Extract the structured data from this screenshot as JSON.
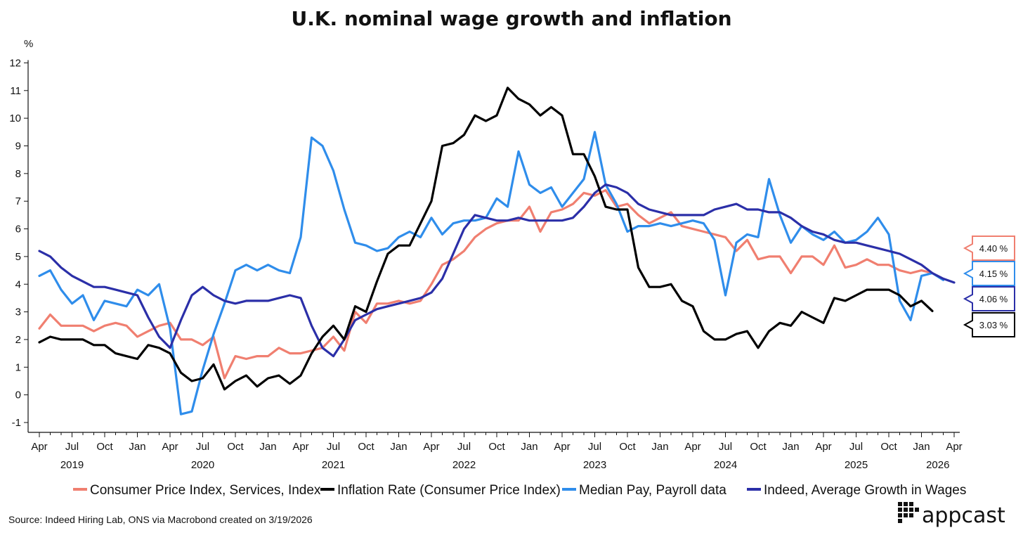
{
  "colors": {
    "cpi_services": "#F07F70",
    "inflation": "#000000",
    "median_pay": "#2F8DEB",
    "indeed_wages": "#2B2FA8"
  },
  "source_text": "Source: Indeed Hiring Lab, ONS via Macrobond created on 3/19/2026",
  "brand": {
    "name": "appcast",
    "icon": "dot-grid-icon"
  },
  "chart_data": {
    "type": "line",
    "title": "U.K. nominal wage growth and inflation",
    "ylabel": "%",
    "xlabel": "",
    "ylim": [
      -1,
      12
    ],
    "yticks": [
      -1,
      0,
      1,
      2,
      3,
      4,
      5,
      6,
      7,
      8,
      9,
      10,
      11,
      12
    ],
    "x_start_month": "2019-04",
    "x_end_month": "2026-04",
    "x_tick_labels": [
      "Apr",
      "Jul",
      "Oct",
      "Jan",
      "Apr",
      "Jul",
      "Oct",
      "Jan",
      "Apr",
      "Jul",
      "Oct",
      "Jan",
      "Apr",
      "Jul",
      "Oct",
      "Jan",
      "Apr",
      "Jul",
      "Oct",
      "Jan",
      "Apr",
      "Jul",
      "Oct",
      "Jan",
      "Apr",
      "Jul",
      "Oct",
      "Jan",
      "Apr"
    ],
    "year_labels": [
      "2019",
      "2020",
      "2021",
      "2022",
      "2023",
      "2024",
      "2025",
      "2026"
    ],
    "grid": false,
    "legend_position": "bottom",
    "series": [
      {
        "name": "Consumer Price Index, Services, Index",
        "key": "cpi_services",
        "start_month": "2019-04",
        "end_label": "4.40 %",
        "values": [
          2.4,
          2.9,
          2.5,
          2.5,
          2.5,
          2.3,
          2.5,
          2.6,
          2.5,
          2.1,
          2.3,
          2.5,
          2.6,
          2.0,
          2.0,
          1.8,
          2.1,
          0.6,
          1.4,
          1.3,
          1.4,
          1.4,
          1.7,
          1.5,
          1.5,
          1.6,
          1.7,
          2.1,
          1.6,
          3.0,
          2.6,
          3.3,
          3.3,
          3.4,
          3.3,
          3.4,
          4.0,
          4.7,
          4.9,
          5.2,
          5.7,
          6.0,
          6.2,
          6.3,
          6.3,
          6.8,
          5.9,
          6.6,
          6.7,
          6.9,
          7.3,
          7.2,
          7.4,
          6.8,
          6.9,
          6.5,
          6.2,
          6.4,
          6.6,
          6.1,
          6.0,
          5.9,
          5.8,
          5.7,
          5.2,
          5.6,
          4.9,
          5.0,
          5.0,
          4.4,
          5.0,
          5.0,
          4.7,
          5.4,
          4.6,
          4.7,
          4.9,
          4.7,
          4.7,
          4.5,
          4.4,
          4.5,
          4.4
        ]
      },
      {
        "name": "Inflation Rate (Consumer Price Index)",
        "key": "inflation",
        "start_month": "2019-04",
        "end_label": "3.03 %",
        "values": [
          1.9,
          2.1,
          2.0,
          2.0,
          2.0,
          1.8,
          1.8,
          1.5,
          1.4,
          1.3,
          1.8,
          1.7,
          1.5,
          0.8,
          0.5,
          0.6,
          1.1,
          0.2,
          0.5,
          0.7,
          0.3,
          0.6,
          0.7,
          0.4,
          0.7,
          1.5,
          2.1,
          2.5,
          2.0,
          3.2,
          3.0,
          4.1,
          5.1,
          5.4,
          5.4,
          6.2,
          7.0,
          9.0,
          9.1,
          9.4,
          10.1,
          9.9,
          10.1,
          11.1,
          10.7,
          10.5,
          10.1,
          10.4,
          10.1,
          8.7,
          8.7,
          7.9,
          6.8,
          6.7,
          6.7,
          4.6,
          3.9,
          3.9,
          4.0,
          3.4,
          3.2,
          2.3,
          2.0,
          2.0,
          2.2,
          2.3,
          1.7,
          2.3,
          2.6,
          2.5,
          3.0,
          2.8,
          2.6,
          3.5,
          3.4,
          3.6,
          3.8,
          3.8,
          3.8,
          3.6,
          3.2,
          3.4,
          3.03
        ]
      },
      {
        "name": "Median Pay, Payroll data",
        "key": "median_pay",
        "start_month": "2019-04",
        "end_label": "4.15 %",
        "values": [
          4.3,
          4.5,
          3.8,
          3.3,
          3.6,
          2.7,
          3.4,
          3.3,
          3.2,
          3.8,
          3.6,
          4.0,
          2.4,
          -0.7,
          -0.6,
          0.9,
          2.2,
          3.3,
          4.5,
          4.7,
          4.5,
          4.7,
          4.5,
          4.4,
          5.7,
          9.3,
          9.0,
          8.1,
          6.7,
          5.5,
          5.4,
          5.2,
          5.3,
          5.7,
          5.9,
          5.7,
          6.4,
          5.8,
          6.2,
          6.3,
          6.3,
          6.4,
          7.1,
          6.8,
          8.8,
          7.6,
          7.3,
          7.5,
          6.8,
          7.3,
          7.8,
          9.5,
          7.6,
          6.9,
          5.9,
          6.1,
          6.1,
          6.2,
          6.1,
          6.2,
          6.3,
          6.2,
          5.6,
          3.6,
          5.5,
          5.8,
          5.7,
          7.8,
          6.5,
          5.5,
          6.1,
          5.8,
          5.6,
          5.9,
          5.5,
          5.6,
          5.9,
          6.4,
          5.8,
          3.4,
          2.7,
          4.3,
          4.4,
          4.15
        ]
      },
      {
        "name": "Indeed, Average Growth in Wages",
        "key": "indeed_wages",
        "start_month": "2019-04",
        "end_label": "4.06 %",
        "values": [
          5.2,
          5.0,
          4.6,
          4.3,
          4.1,
          3.9,
          3.9,
          3.8,
          3.7,
          3.6,
          2.8,
          2.1,
          1.7,
          2.7,
          3.6,
          3.9,
          3.6,
          3.4,
          3.3,
          3.4,
          3.4,
          3.4,
          3.5,
          3.6,
          3.5,
          2.5,
          1.7,
          1.4,
          2.0,
          2.7,
          2.9,
          3.1,
          3.2,
          3.3,
          3.4,
          3.5,
          3.7,
          4.2,
          5.1,
          6.0,
          6.5,
          6.4,
          6.3,
          6.3,
          6.4,
          6.3,
          6.3,
          6.3,
          6.3,
          6.4,
          6.8,
          7.3,
          7.6,
          7.5,
          7.3,
          6.9,
          6.7,
          6.6,
          6.5,
          6.5,
          6.5,
          6.5,
          6.7,
          6.8,
          6.9,
          6.7,
          6.7,
          6.6,
          6.6,
          6.4,
          6.1,
          5.9,
          5.8,
          5.6,
          5.5,
          5.5,
          5.4,
          5.3,
          5.2,
          5.1,
          4.9,
          4.7,
          4.4,
          4.2,
          4.06
        ]
      }
    ]
  }
}
